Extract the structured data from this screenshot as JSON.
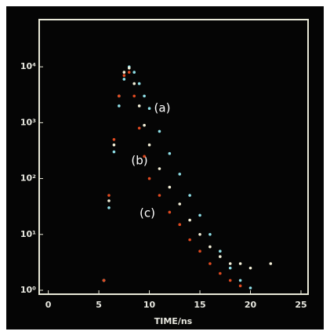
{
  "chart_data": {
    "type": "scatter",
    "log_y": true,
    "x_label": "TIME/ns",
    "xlim": [
      -0.9,
      25.7
    ],
    "xticks": [
      0,
      5,
      10,
      15,
      20,
      25
    ],
    "ylim": [
      0.85,
      70000
    ],
    "yticks": [
      {
        "value": 1,
        "label": "10⁰"
      },
      {
        "value": 10,
        "label": "10¹"
      },
      {
        "value": 100,
        "label": "10²"
      },
      {
        "value": 1000,
        "label": "10³"
      },
      {
        "value": 10000,
        "label": "10⁴"
      }
    ],
    "series": [
      {
        "name": "(a)",
        "color": "#8fe0e8",
        "x": [
          5.5,
          6,
          6.5,
          7,
          7.5,
          8,
          8.5,
          9,
          9.5,
          10,
          11,
          12,
          13,
          14,
          15,
          16,
          17,
          18,
          19,
          20
        ],
        "values": [
          1.5,
          30,
          300,
          2000,
          6000,
          10000,
          8000,
          5000,
          3000,
          1800,
          700,
          280,
          120,
          50,
          22,
          10,
          5,
          2.5,
          1.5,
          1.1
        ]
      },
      {
        "name": "(b)",
        "color": "#f4f0d8",
        "x": [
          5.5,
          6,
          6.5,
          7,
          7.5,
          8,
          8.5,
          9,
          9.5,
          10,
          11,
          12,
          13,
          14,
          15,
          16,
          17,
          18,
          19,
          20,
          22
        ],
        "values": [
          1.5,
          40,
          400,
          3000,
          8000,
          9500,
          5000,
          2000,
          900,
          400,
          150,
          70,
          35,
          18,
          10,
          6,
          4,
          3,
          3,
          2.5,
          3
        ]
      },
      {
        "name": "(c)",
        "color": "#e04a20",
        "x": [
          5.5,
          6,
          6.5,
          7,
          7.5,
          8,
          8.5,
          9,
          9.5,
          10,
          11,
          12,
          13,
          14,
          15,
          16,
          17,
          18,
          19
        ],
        "values": [
          1.5,
          50,
          500,
          3000,
          7000,
          8000,
          3000,
          800,
          250,
          100,
          50,
          25,
          15,
          8,
          5,
          3,
          2,
          1.5,
          1.2
        ]
      }
    ]
  }
}
